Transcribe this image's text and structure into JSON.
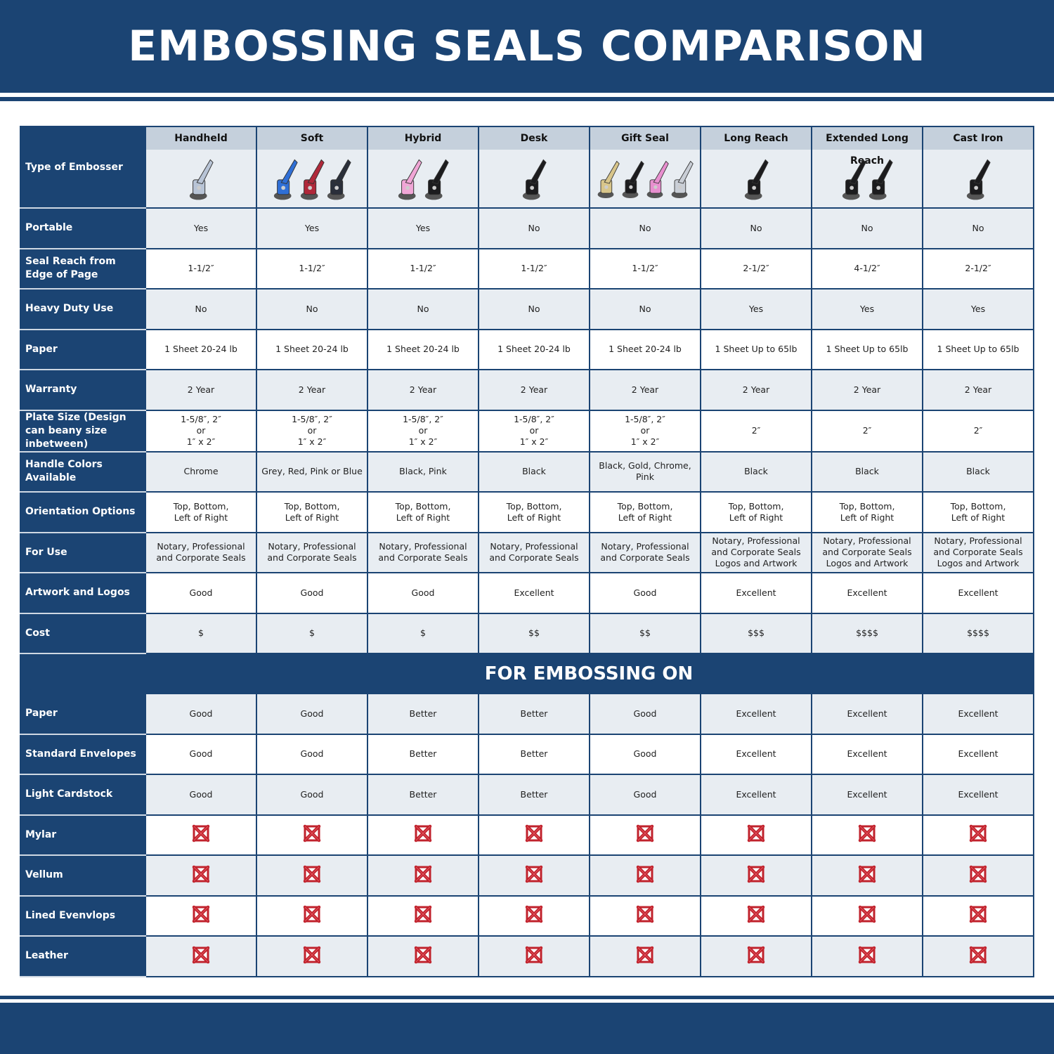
{
  "title": "EMBOSSING SEALS COMPARISON",
  "type_label": "Type of Embosser",
  "products": [
    {
      "name": "Handheld",
      "colors": [
        "#b8c4d6"
      ]
    },
    {
      "name": "Soft",
      "colors": [
        "#2f6fd6",
        "#b0283a",
        "#2a2f3a"
      ]
    },
    {
      "name": "Hybrid",
      "colors": [
        "#f0a6d6",
        "#1c1c1e"
      ]
    },
    {
      "name": "Desk",
      "colors": [
        "#1c1c1e"
      ]
    },
    {
      "name": "Gift Seal",
      "colors": [
        "#d8c58a",
        "#1c1c1e",
        "#e88fcf",
        "#c9ced6"
      ]
    },
    {
      "name": "Long Reach",
      "colors": [
        "#1c1c1e"
      ]
    },
    {
      "name": "Extended Long Reach",
      "colors": [
        "#1c1c1e",
        "#1c1c1e"
      ]
    },
    {
      "name": "Cast Iron",
      "colors": [
        "#1c1c1e"
      ]
    }
  ],
  "rows": [
    {
      "label": "Portable",
      "values": [
        "Yes",
        "Yes",
        "Yes",
        "No",
        "No",
        "No",
        "No",
        "No"
      ]
    },
    {
      "label": "Seal Reach from Edge of Page",
      "values": [
        "1-1/2″",
        "1-1/2″",
        "1-1/2″",
        "1-1/2″",
        "1-1/2″",
        "2-1/2″",
        "4-1/2″",
        "2-1/2″"
      ]
    },
    {
      "label": "Heavy Duty Use",
      "values": [
        "No",
        "No",
        "No",
        "No",
        "No",
        "Yes",
        "Yes",
        "Yes"
      ]
    },
    {
      "label": "Paper",
      "values": [
        "1 Sheet 20-24 lb",
        "1 Sheet 20-24 lb",
        "1 Sheet 20-24 lb",
        "1 Sheet 20-24 lb",
        "1 Sheet 20-24 lb",
        "1 Sheet Up to 65lb",
        "1 Sheet Up to 65lb",
        "1 Sheet Up to 65lb"
      ]
    },
    {
      "label": "Warranty",
      "values": [
        "2 Year",
        "2 Year",
        "2 Year",
        "2 Year",
        "2 Year",
        "2 Year",
        "2 Year",
        "2 Year"
      ]
    },
    {
      "label": "Plate Size (Design can beany size inbetween)",
      "values": [
        "1-5/8″, 2″\nor\n1″ x 2″",
        "1-5/8″, 2″\nor\n1″ x 2″",
        "1-5/8″, 2″\nor\n1″ x 2″",
        "1-5/8″, 2″\nor\n1″ x 2″",
        "1-5/8″, 2″\nor\n1″ x 2″",
        "2″",
        "2″",
        "2″"
      ]
    },
    {
      "label": "Handle Colors Available",
      "values": [
        "Chrome",
        "Grey, Red, Pink or Blue",
        "Black, Pink",
        "Black",
        "Black, Gold, Chrome, Pink",
        "Black",
        "Black",
        "Black"
      ]
    },
    {
      "label": "Orientation Options",
      "values": [
        "Top, Bottom,\nLeft of Right",
        "Top, Bottom,\nLeft of Right",
        "Top, Bottom,\nLeft of Right",
        "Top, Bottom,\nLeft of Right",
        "Top, Bottom,\nLeft of Right",
        "Top, Bottom,\nLeft of Right",
        "Top, Bottom,\nLeft of Right",
        "Top, Bottom,\nLeft of Right"
      ]
    },
    {
      "label": "For Use",
      "values": [
        "Notary, Professional\nand Corporate Seals",
        "Notary, Professional\nand Corporate Seals",
        "Notary, Professional\nand Corporate Seals",
        "Notary, Professional\nand Corporate Seals",
        "Notary, Professional\nand Corporate Seals",
        "Notary, Professional\nand Corporate Seals\nLogos and Artwork",
        "Notary, Professional\nand Corporate Seals\nLogos and Artwork",
        "Notary, Professional\nand Corporate Seals\nLogos and Artwork"
      ]
    },
    {
      "label": "Artwork and Logos",
      "values": [
        "Good",
        "Good",
        "Good",
        "Excellent",
        "Good",
        "Excellent",
        "Excellent",
        "Excellent"
      ]
    },
    {
      "label": "Cost",
      "values": [
        "$",
        "$",
        "$",
        "$$",
        "$$",
        "$$$",
        "$$$$",
        "$$$$"
      ]
    }
  ],
  "section_title": "FOR EMBOSSING ON",
  "embossing_rows": [
    {
      "label": "Paper",
      "values": [
        "Good",
        "Good",
        "Better",
        "Better",
        "Good",
        "Excellent",
        "Excellent",
        "Excellent"
      ]
    },
    {
      "label": "Standard Envelopes",
      "values": [
        "Good",
        "Good",
        "Better",
        "Better",
        "Good",
        "Excellent",
        "Excellent",
        "Excellent"
      ]
    },
    {
      "label": "Light Cardstock",
      "values": [
        "Good",
        "Good",
        "Better",
        "Better",
        "Good",
        "Excellent",
        "Excellent",
        "Excellent"
      ]
    },
    {
      "label": "Mylar",
      "values": [
        "x-mark",
        "x-mark",
        "x-mark",
        "x-mark",
        "x-mark",
        "x-mark",
        "x-mark",
        "x-mark"
      ]
    },
    {
      "label": "Vellum",
      "values": [
        "x-mark",
        "x-mark",
        "x-mark",
        "x-mark",
        "x-mark",
        "x-mark",
        "x-mark",
        "x-mark"
      ]
    },
    {
      "label": "Lined Evenvlops",
      "values": [
        "x-mark",
        "x-mark",
        "x-mark",
        "x-mark",
        "x-mark",
        "x-mark",
        "x-mark",
        "x-mark"
      ]
    },
    {
      "label": "Leather",
      "values": [
        "x-mark",
        "x-mark",
        "x-mark",
        "x-mark",
        "x-mark",
        "x-mark",
        "x-mark",
        "x-mark"
      ]
    }
  ],
  "colors": {
    "brand": "#1b4473",
    "row_alt": "#e8edf2",
    "header_cell": "#c5d0dc",
    "x_mark": "#c0222c"
  }
}
